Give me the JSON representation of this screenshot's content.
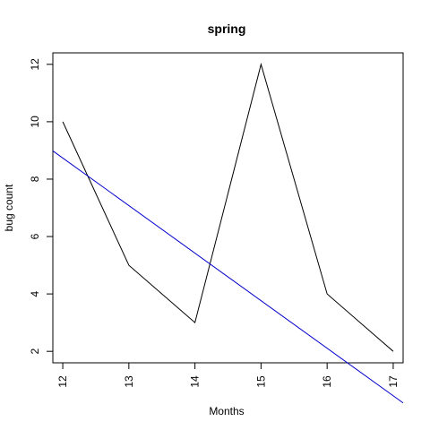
{
  "chart_data": {
    "type": "line",
    "title": "spring",
    "xlabel": "Months",
    "ylabel": "bug count",
    "x": [
      12,
      13,
      14,
      15,
      16,
      17
    ],
    "series": [
      {
        "values": [
          10,
          5,
          3,
          12,
          4,
          2
        ],
        "color": "#000000"
      }
    ],
    "trend_line": {
      "intercept": 28.62,
      "slope": -1.657,
      "color": "#0000cc"
    },
    "xlim": [
      11.85,
      17.15
    ],
    "ylim": [
      1.6,
      12.4
    ],
    "xticks": [
      12,
      13,
      14,
      15,
      16,
      17
    ],
    "yticks": [
      2,
      4,
      6,
      8,
      10,
      12
    ],
    "grid": false,
    "legend": "none"
  }
}
